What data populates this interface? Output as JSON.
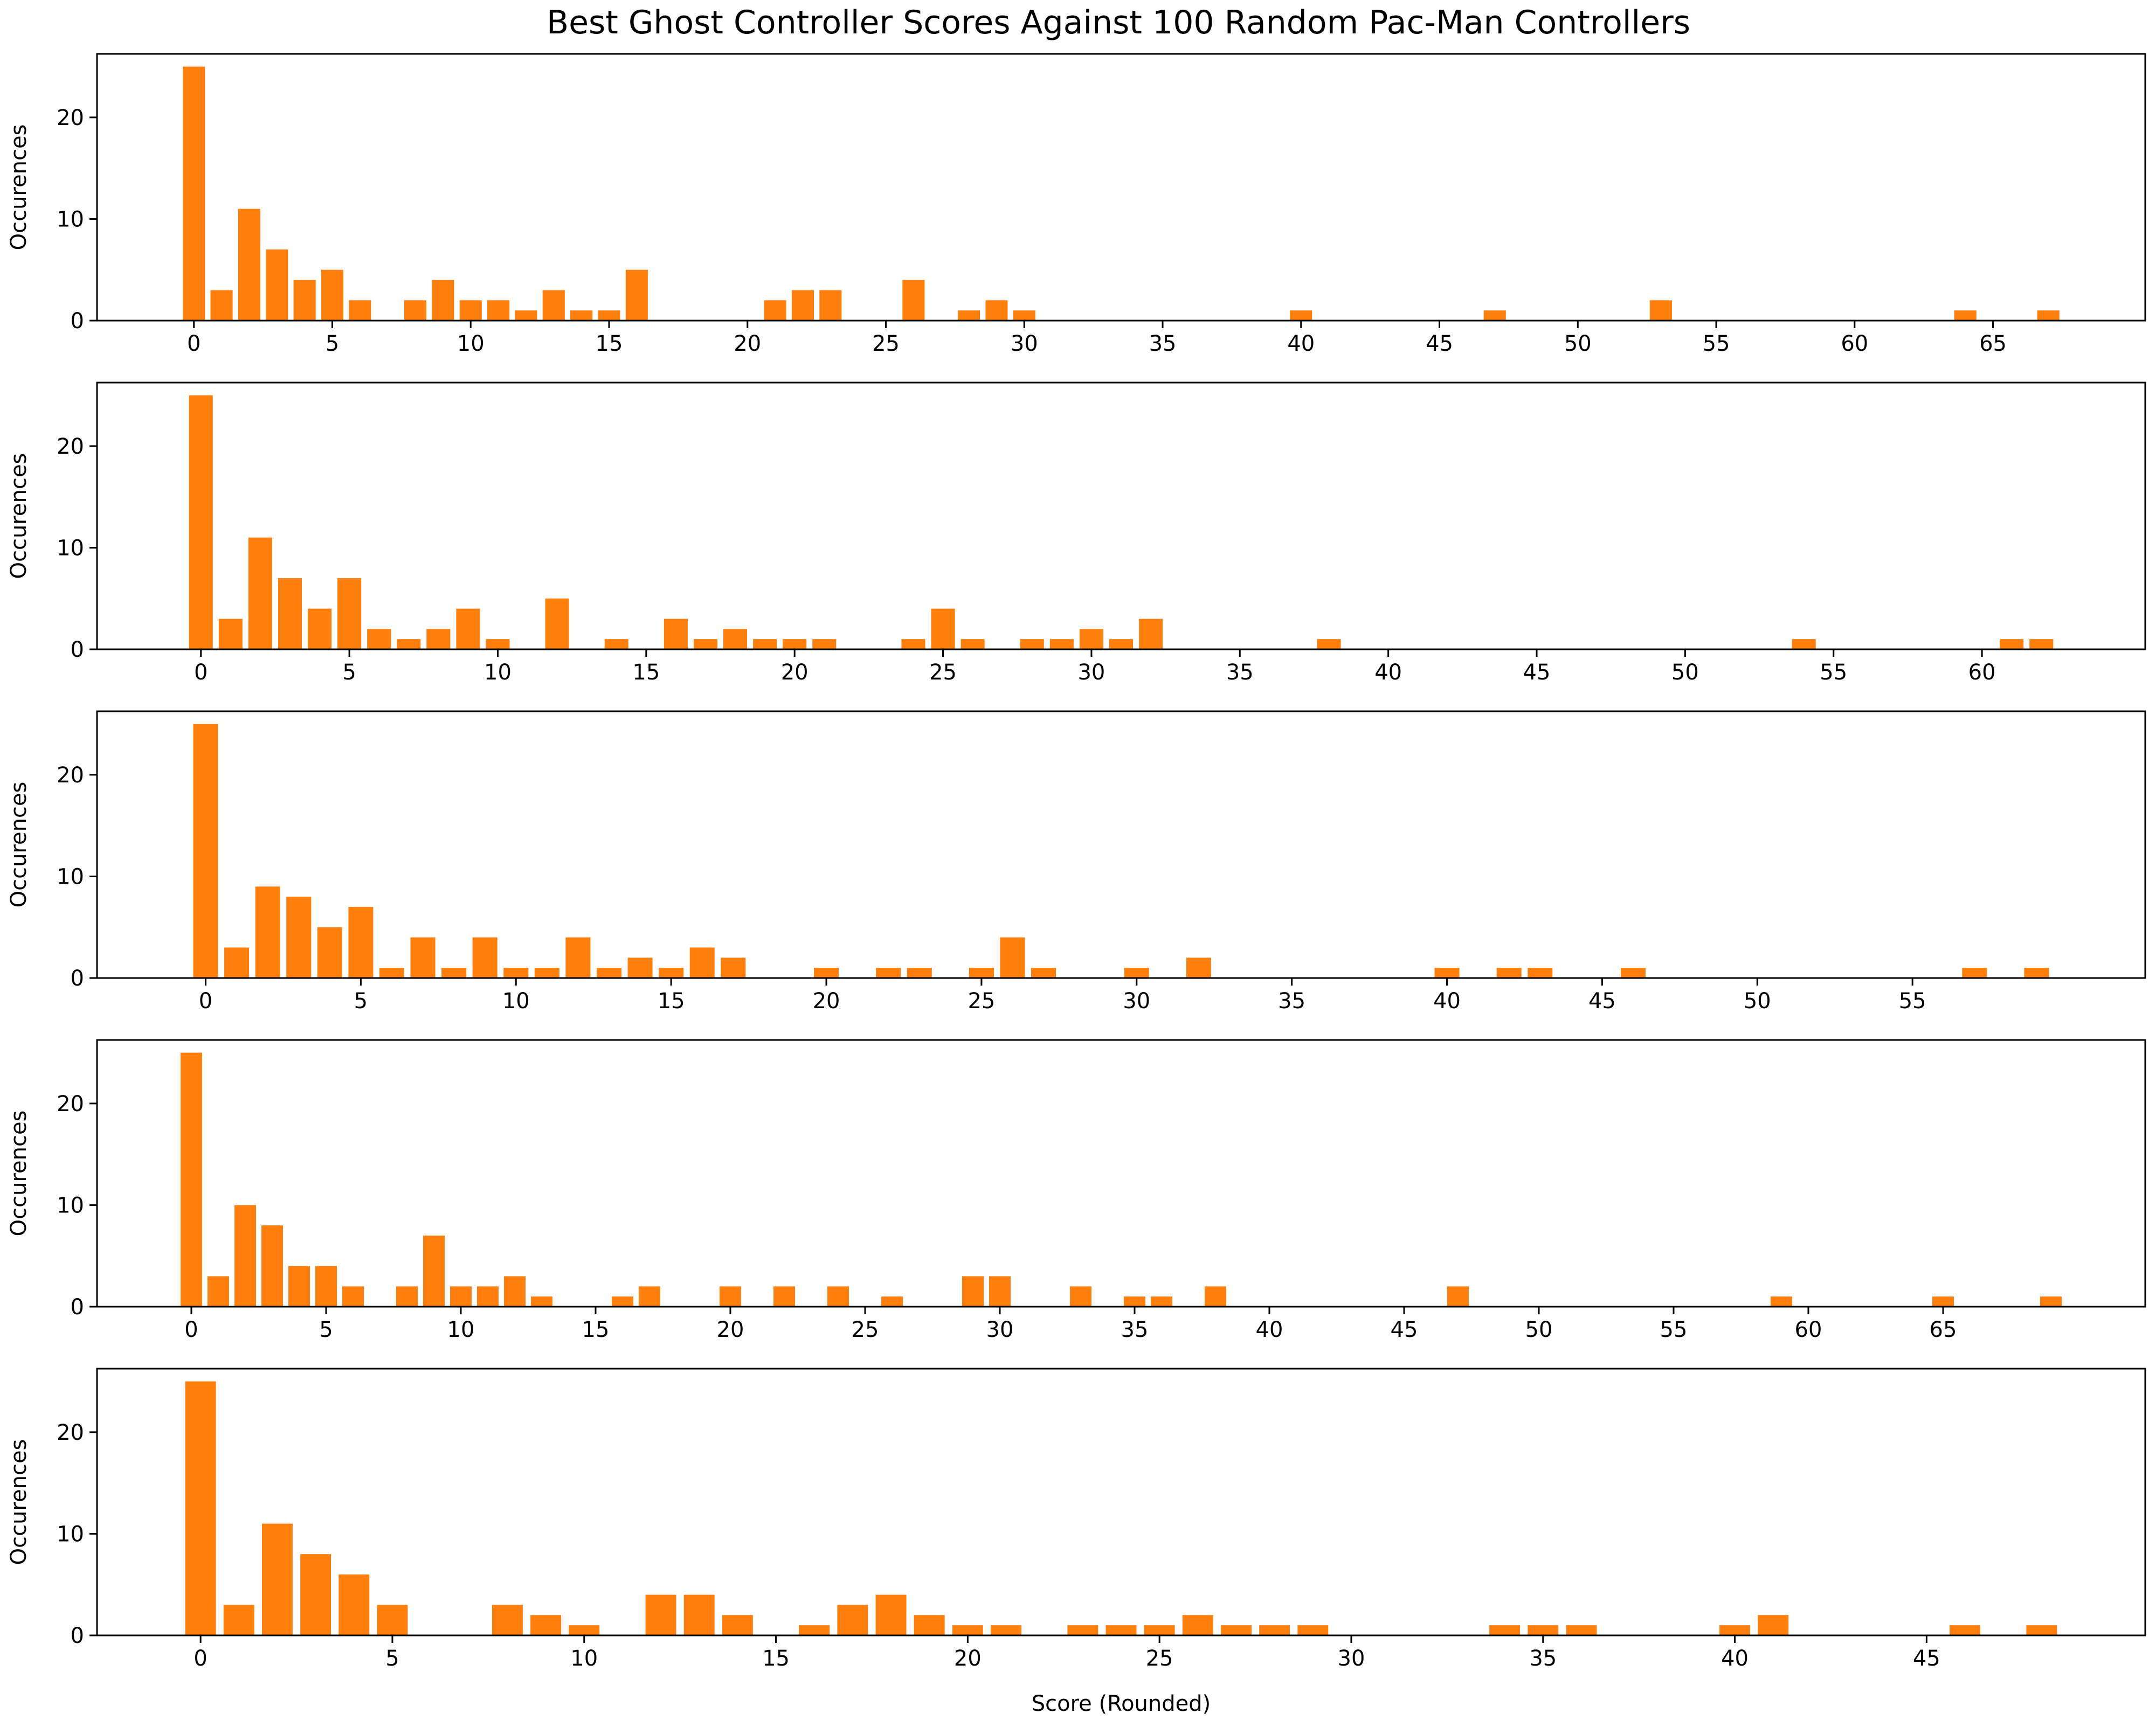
{
  "chart_data": {
    "type": "bar",
    "title": "Best Ghost Controller Scores Against 100 Random Pac-Man Controllers",
    "xlabel": "Score (Rounded)",
    "ylabel": "Occurences",
    "bar_color": "#ff7f0e",
    "grid": false,
    "subplots": [
      {
        "xlim": [
          -3.5,
          70.5
        ],
        "ylim": [
          0,
          26.25
        ],
        "xticks": [
          0,
          5,
          10,
          15,
          20,
          25,
          30,
          35,
          40,
          45,
          50,
          55,
          60,
          65
        ],
        "yticks": [
          0,
          10,
          20
        ],
        "x": [
          0,
          1,
          2,
          3,
          4,
          5,
          6,
          8,
          9,
          10,
          11,
          12,
          13,
          14,
          15,
          16,
          21,
          22,
          23,
          26,
          28,
          29,
          30,
          40,
          47,
          53,
          64,
          67
        ],
        "values": [
          25,
          3,
          11,
          7,
          4,
          5,
          2,
          2,
          4,
          2,
          2,
          1,
          3,
          1,
          1,
          5,
          2,
          3,
          3,
          4,
          1,
          2,
          1,
          1,
          1,
          2,
          1,
          1
        ]
      },
      {
        "xlim": [
          -3.5,
          65.5
        ],
        "ylim": [
          0,
          26.25
        ],
        "xticks": [
          0,
          5,
          10,
          15,
          20,
          25,
          30,
          35,
          40,
          45,
          50,
          55,
          60
        ],
        "yticks": [
          0,
          10,
          20
        ],
        "x": [
          0,
          1,
          2,
          3,
          4,
          5,
          6,
          7,
          8,
          9,
          10,
          12,
          14,
          16,
          17,
          18,
          19,
          20,
          21,
          24,
          25,
          26,
          28,
          29,
          30,
          31,
          32,
          38,
          54,
          61,
          62
        ],
        "values": [
          25,
          3,
          11,
          7,
          4,
          7,
          2,
          1,
          2,
          4,
          1,
          5,
          1,
          3,
          1,
          2,
          1,
          1,
          1,
          1,
          4,
          1,
          1,
          1,
          2,
          1,
          3,
          1,
          1,
          1,
          1
        ]
      },
      {
        "xlim": [
          -3.5,
          62.5
        ],
        "ylim": [
          0,
          26.25
        ],
        "xticks": [
          0,
          5,
          10,
          15,
          20,
          25,
          30,
          35,
          40,
          45,
          50,
          55
        ],
        "yticks": [
          0,
          10,
          20
        ],
        "x": [
          0,
          1,
          2,
          3,
          4,
          5,
          6,
          7,
          8,
          9,
          10,
          11,
          12,
          13,
          14,
          15,
          16,
          17,
          20,
          22,
          23,
          25,
          26,
          27,
          30,
          32,
          40,
          42,
          43,
          46,
          57,
          59
        ],
        "values": [
          25,
          3,
          9,
          8,
          5,
          7,
          1,
          4,
          1,
          4,
          1,
          1,
          4,
          1,
          2,
          1,
          3,
          2,
          1,
          1,
          1,
          1,
          4,
          1,
          1,
          2,
          1,
          1,
          1,
          1,
          1,
          1
        ]
      },
      {
        "xlim": [
          -3.5,
          72.5
        ],
        "ylim": [
          0,
          26.25
        ],
        "xticks": [
          0,
          5,
          10,
          15,
          20,
          25,
          30,
          35,
          40,
          45,
          50,
          55,
          60,
          65
        ],
        "yticks": [
          0,
          10,
          20
        ],
        "x": [
          0,
          1,
          2,
          3,
          4,
          5,
          6,
          8,
          9,
          10,
          11,
          12,
          13,
          16,
          17,
          20,
          22,
          24,
          26,
          29,
          30,
          33,
          35,
          36,
          38,
          47,
          59,
          65,
          69
        ],
        "values": [
          25,
          3,
          10,
          8,
          4,
          4,
          2,
          2,
          7,
          2,
          2,
          3,
          1,
          1,
          2,
          2,
          2,
          2,
          1,
          3,
          3,
          2,
          1,
          1,
          2,
          2,
          1,
          1,
          1
        ]
      },
      {
        "xlim": [
          -2.7,
          50.7
        ],
        "ylim": [
          0,
          26.25
        ],
        "xticks": [
          0,
          5,
          10,
          15,
          20,
          25,
          30,
          35,
          40,
          45
        ],
        "yticks": [
          0,
          10,
          20
        ],
        "x": [
          0,
          1,
          2,
          3,
          4,
          5,
          8,
          9,
          10,
          12,
          13,
          14,
          16,
          17,
          18,
          19,
          20,
          21,
          23,
          24,
          25,
          26,
          27,
          28,
          29,
          34,
          35,
          36,
          40,
          41,
          46,
          48
        ],
        "values": [
          25,
          3,
          11,
          8,
          6,
          3,
          3,
          2,
          1,
          4,
          4,
          2,
          1,
          3,
          4,
          2,
          1,
          1,
          1,
          1,
          1,
          2,
          1,
          1,
          1,
          1,
          1,
          1,
          1,
          2,
          1,
          1
        ]
      }
    ]
  }
}
